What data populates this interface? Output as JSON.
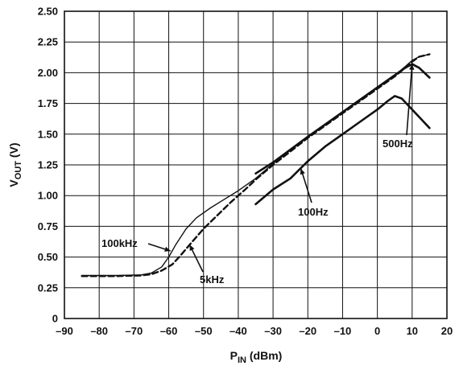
{
  "chart_data": {
    "type": "line",
    "xlabel": {
      "main": "P",
      "sub": "IN",
      "rest": " (dBm)"
    },
    "ylabel": {
      "main": "V",
      "sub": "OUT",
      "rest": " (V)"
    },
    "xlim": [
      -90,
      20
    ],
    "ylim": [
      0,
      2.5
    ],
    "x_ticks": [
      -90,
      -80,
      -70,
      -60,
      -50,
      -40,
      -30,
      -20,
      -10,
      0,
      10,
      20
    ],
    "y_ticks": [
      0,
      0.25,
      0.5,
      0.75,
      1.0,
      1.25,
      1.5,
      1.75,
      2.0,
      2.25,
      2.5
    ],
    "y_tick_labels": [
      "0",
      "0.25",
      "0.50",
      "0.75",
      "1.00",
      "1.25",
      "1.50",
      "1.75",
      "2.00",
      "2.25",
      "2.50"
    ],
    "x_tick_labels": [
      "–90",
      "–80",
      "–70",
      "–60",
      "–50",
      "–40",
      "–30",
      "–20",
      "–10",
      "0",
      "10",
      "20"
    ],
    "grid": true,
    "series": [
      {
        "name": "100kHz",
        "style": "solid-thin",
        "points": [
          [
            -85,
            0.35
          ],
          [
            -75,
            0.35
          ],
          [
            -68,
            0.355
          ],
          [
            -65,
            0.37
          ],
          [
            -62,
            0.42
          ],
          [
            -60,
            0.5
          ],
          [
            -58,
            0.6
          ],
          [
            -55,
            0.73
          ],
          [
            -52,
            0.82
          ],
          [
            -48,
            0.9
          ],
          [
            -44,
            0.97
          ],
          [
            -40,
            1.04
          ],
          [
            -35,
            1.14
          ],
          [
            -30,
            1.26
          ],
          [
            -20,
            1.48
          ],
          [
            -10,
            1.68
          ],
          [
            0,
            1.88
          ],
          [
            5,
            1.98
          ],
          [
            8,
            2.05
          ],
          [
            10,
            2.1
          ],
          [
            12,
            2.13
          ],
          [
            15,
            2.15
          ]
        ]
      },
      {
        "name": "5kHz",
        "style": "dashed",
        "points": [
          [
            -85,
            0.345
          ],
          [
            -75,
            0.345
          ],
          [
            -68,
            0.35
          ],
          [
            -65,
            0.36
          ],
          [
            -62,
            0.39
          ],
          [
            -59,
            0.44
          ],
          [
            -57,
            0.5
          ],
          [
            -54,
            0.6
          ],
          [
            -50,
            0.73
          ],
          [
            -46,
            0.84
          ],
          [
            -42,
            0.95
          ],
          [
            -38,
            1.05
          ],
          [
            -35,
            1.13
          ],
          [
            -30,
            1.25
          ],
          [
            -20,
            1.47
          ],
          [
            -10,
            1.67
          ],
          [
            0,
            1.87
          ],
          [
            5,
            1.97
          ],
          [
            8,
            2.04
          ],
          [
            10,
            2.09
          ],
          [
            12,
            2.13
          ],
          [
            15,
            2.15
          ]
        ]
      },
      {
        "name": "500Hz",
        "style": "solid-thick",
        "points": [
          [
            -35,
            1.18
          ],
          [
            -30,
            1.27
          ],
          [
            -20,
            1.48
          ],
          [
            -10,
            1.68
          ],
          [
            0,
            1.88
          ],
          [
            5,
            1.98
          ],
          [
            8,
            2.04
          ],
          [
            10,
            2.07
          ],
          [
            12,
            2.04
          ],
          [
            15,
            1.96
          ]
        ]
      },
      {
        "name": "100Hz",
        "style": "solid-thick",
        "points": [
          [
            -35,
            0.93
          ],
          [
            -30,
            1.05
          ],
          [
            -25,
            1.14
          ],
          [
            -20,
            1.28
          ],
          [
            -15,
            1.4
          ],
          [
            -10,
            1.5
          ],
          [
            -5,
            1.6
          ],
          [
            0,
            1.7
          ],
          [
            3,
            1.77
          ],
          [
            5,
            1.81
          ],
          [
            7,
            1.79
          ],
          [
            10,
            1.7
          ],
          [
            13,
            1.61
          ],
          [
            15,
            1.55
          ]
        ]
      }
    ],
    "annotations": [
      {
        "text": "100kHz",
        "target": [
          -59.5,
          0.55
        ]
      },
      {
        "text": "5kHz",
        "target": [
          -54,
          0.6
        ]
      },
      {
        "text": "500Hz",
        "target": [
          10,
          2.07
        ]
      },
      {
        "text": "100Hz",
        "target": [
          -22,
          1.22
        ]
      }
    ]
  }
}
